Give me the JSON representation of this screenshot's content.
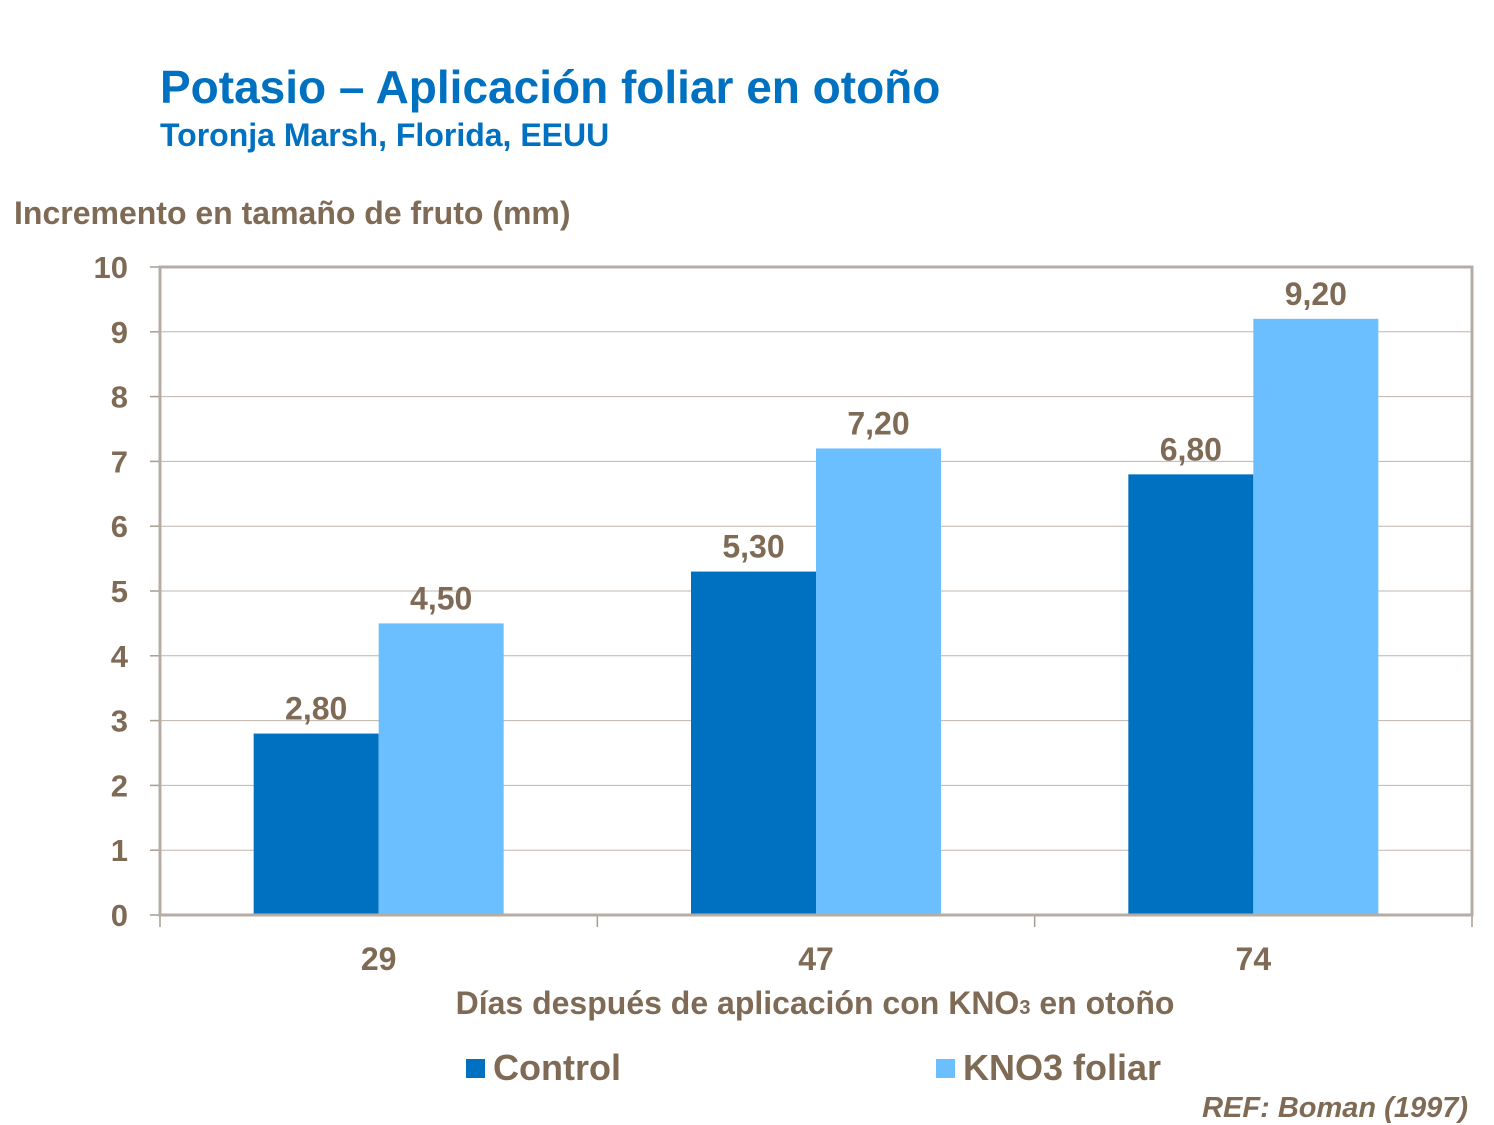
{
  "chart_data": {
    "type": "bar",
    "title": "Potasio – Aplicación foliar en otoño",
    "subtitle": "Toronja Marsh, Florida, EEUU",
    "ylabel": "Incremento en tamaño de fruto (mm)",
    "xlabel_parts": [
      "Días después de aplicación con KNO",
      "3",
      " en otoño"
    ],
    "categories": [
      "29",
      "47",
      "74"
    ],
    "series": [
      {
        "name": "Control",
        "values": [
          2.8,
          5.3,
          6.8
        ],
        "labels": [
          "2,80",
          "5,30",
          "6,80"
        ],
        "color": "#0070C0"
      },
      {
        "name": "KNO3 foliar",
        "values": [
          4.5,
          7.2,
          9.2
        ],
        "labels": [
          "4,50",
          "7,20",
          "9,20"
        ],
        "color": "#6BBFFF"
      }
    ],
    "ylim": [
      0,
      10
    ],
    "yticks": [
      "0",
      "1",
      "2",
      "3",
      "4",
      "5",
      "6",
      "7",
      "8",
      "9",
      "10"
    ],
    "grid": true,
    "legend_position": "bottom",
    "reference": "REF: Boman (1997)"
  }
}
